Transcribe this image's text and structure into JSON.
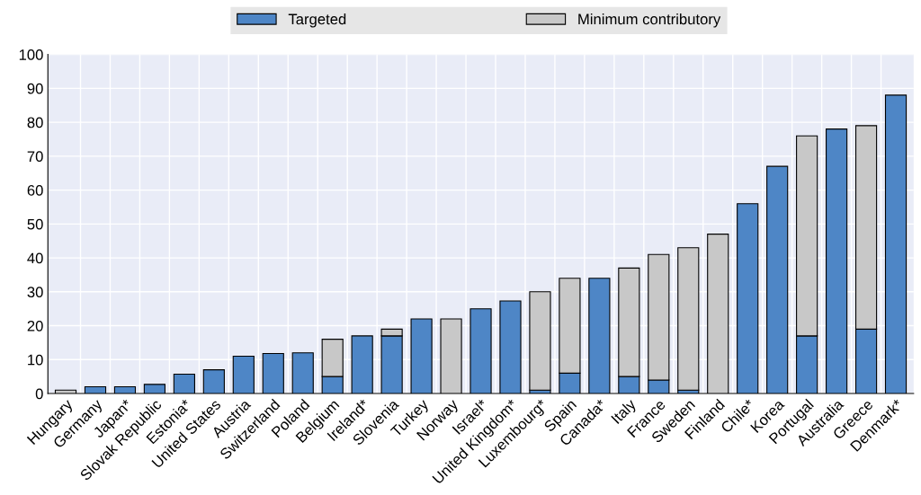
{
  "chart_data": {
    "type": "bar",
    "stacked": true,
    "categories": [
      "Hungary",
      "Germany",
      "Japan*",
      "Slovak Republic",
      "Estonia*",
      "United States",
      "Austria",
      "Switzerland",
      "Poland",
      "Belgium",
      "Ireland*",
      "Slovenia",
      "Turkey",
      "Norway",
      "Israel*",
      "United Kingdom*",
      "Luxembourg*",
      "Spain",
      "Canada*",
      "Italy",
      "France",
      "Sweden",
      "Finland",
      "Chile*",
      "Korea",
      "Portugal",
      "Australia",
      "Greece",
      "Denmark*"
    ],
    "series": [
      {
        "name": "Targeted",
        "color": "#4e86c6",
        "values": [
          0,
          2,
          2,
          2.7,
          5.7,
          7,
          11,
          11.8,
          12,
          5,
          17,
          17,
          22,
          0,
          25,
          27.3,
          1,
          6,
          34,
          5,
          4,
          1,
          0,
          56,
          67,
          17,
          78,
          19,
          88
        ]
      },
      {
        "name": "Minimum contributory",
        "color": "#c8c8c8",
        "values": [
          1,
          0,
          0,
          0,
          0,
          0,
          0,
          0,
          0,
          11,
          0,
          2,
          0,
          22,
          0,
          0,
          29,
          28,
          0,
          32,
          37,
          42,
          47,
          0,
          0,
          59,
          0,
          60,
          0
        ]
      }
    ],
    "ylim": [
      0,
      100
    ],
    "yticks": [
      0,
      10,
      20,
      30,
      40,
      50,
      60,
      70,
      80,
      90,
      100
    ],
    "grid": true,
    "legend": "top"
  }
}
